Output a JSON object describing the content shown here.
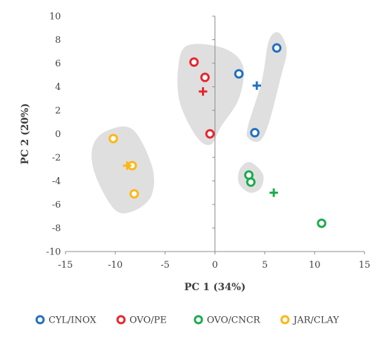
{
  "chart_data": {
    "type": "scatter",
    "xlabel": "PC 1 (34%)",
    "ylabel": "PC 2 (20%)",
    "xlim": [
      -15,
      15
    ],
    "ylim": [
      -10,
      10
    ],
    "x_ticks": [
      -15,
      -10,
      -5,
      0,
      5,
      10,
      15
    ],
    "y_ticks": [
      -10,
      -8,
      -6,
      -4,
      -2,
      0,
      2,
      4,
      6,
      8,
      10
    ],
    "grid": false,
    "legend_position": "bottom",
    "series": [
      {
        "name": "CYL/INOX",
        "color": "#1f6fc1",
        "points": [
          [
            6.2,
            7.3
          ],
          [
            2.4,
            5.1
          ],
          [
            4.0,
            0.1
          ]
        ],
        "centroid": [
          4.2,
          4.1
        ],
        "group_region": [
          [
            5.4,
            7.9
          ],
          [
            6.4,
            8.6
          ],
          [
            7.2,
            7.1
          ],
          [
            6.6,
            4.8
          ],
          [
            5.4,
            0.9
          ],
          [
            4.5,
            -0.6
          ],
          [
            3.4,
            -0.4
          ],
          [
            3.3,
            0.6
          ],
          [
            4.7,
            4.5
          ]
        ]
      },
      {
        "name": "OVO/PE",
        "color": "#e8252b",
        "points": [
          [
            -2.1,
            6.1
          ],
          [
            -1.0,
            4.8
          ],
          [
            -0.5,
            0.0
          ]
        ],
        "centroid": [
          -1.2,
          3.6
        ],
        "group_region": [
          [
            -2.8,
            7.5
          ],
          [
            0.8,
            7.3
          ],
          [
            2.8,
            5.8
          ],
          [
            2.4,
            3.0
          ],
          [
            0.6,
            0.6
          ],
          [
            -0.4,
            -0.9
          ],
          [
            -1.8,
            -0.3
          ],
          [
            -3.5,
            2.6
          ],
          [
            -3.7,
            5.5
          ]
        ]
      },
      {
        "name": "OVO/CNCR",
        "color": "#1bab4b",
        "points": [
          [
            3.4,
            -3.5
          ],
          [
            3.6,
            -4.1
          ],
          [
            10.7,
            -7.6
          ]
        ],
        "centroid": [
          5.9,
          -5.0
        ],
        "group_region": [
          [
            2.5,
            -3.0
          ],
          [
            3.5,
            -2.4
          ],
          [
            4.8,
            -3.4
          ],
          [
            4.6,
            -4.6
          ],
          [
            3.5,
            -5.0
          ],
          [
            2.4,
            -4.2
          ]
        ]
      },
      {
        "name": "JAR/CLAY",
        "color": "#ffb612",
        "points": [
          [
            -10.2,
            -0.4
          ],
          [
            -8.3,
            -2.7
          ],
          [
            -8.1,
            -5.1
          ]
        ],
        "centroid": [
          -8.8,
          -2.7
        ],
        "group_region": [
          [
            -11.0,
            0.2
          ],
          [
            -8.3,
            0.4
          ],
          [
            -6.3,
            -2.8
          ],
          [
            -6.4,
            -5.3
          ],
          [
            -8.3,
            -6.6
          ],
          [
            -10.1,
            -6.4
          ],
          [
            -12.0,
            -3.5
          ],
          [
            -12.3,
            -1.2
          ]
        ]
      }
    ]
  }
}
